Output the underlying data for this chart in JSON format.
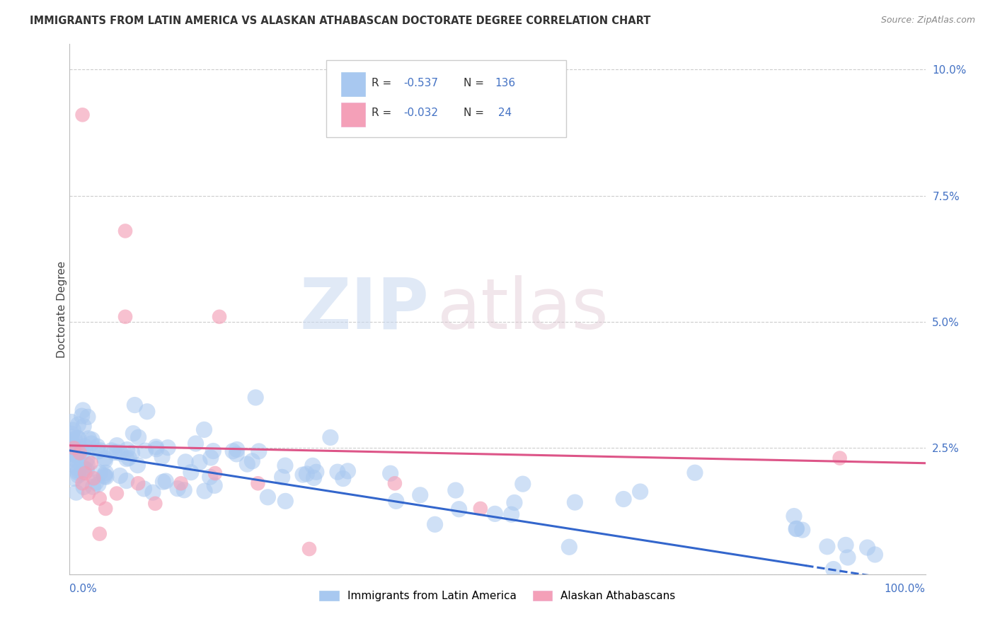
{
  "title": "IMMIGRANTS FROM LATIN AMERICA VS ALASKAN ATHABASCAN DOCTORATE DEGREE CORRELATION CHART",
  "source": "Source: ZipAtlas.com",
  "ylabel": "Doctorate Degree",
  "blue_R": "-0.537",
  "blue_N": "136",
  "pink_R": "-0.032",
  "pink_N": "24",
  "blue_color": "#A8C8F0",
  "pink_color": "#F4A0B8",
  "blue_line_color": "#3366CC",
  "pink_line_color": "#DD5588",
  "watermark_zip": "ZIP",
  "watermark_atlas": "atlas",
  "legend_label_blue": "Immigrants from Latin America",
  "legend_label_pink": "Alaskan Athabascans",
  "xlim": [
    0.0,
    1.0
  ],
  "ylim": [
    0.0,
    0.105
  ],
  "ytick_vals": [
    0.0,
    0.025,
    0.05,
    0.075,
    0.1
  ],
  "ytick_labels": [
    "",
    "2.5%",
    "5.0%",
    "7.5%",
    "10.0%"
  ],
  "grid_color": "#CCCCCC",
  "background_color": "#FFFFFF",
  "blue_trend_start_x": 0.0,
  "blue_trend_start_y": 0.0245,
  "blue_trend_end_x": 1.0,
  "blue_trend_end_y": -0.002,
  "blue_trend_solid_end": 0.86,
  "pink_trend_start_x": 0.0,
  "pink_trend_start_y": 0.0255,
  "pink_trend_end_x": 1.0,
  "pink_trend_end_y": 0.022
}
